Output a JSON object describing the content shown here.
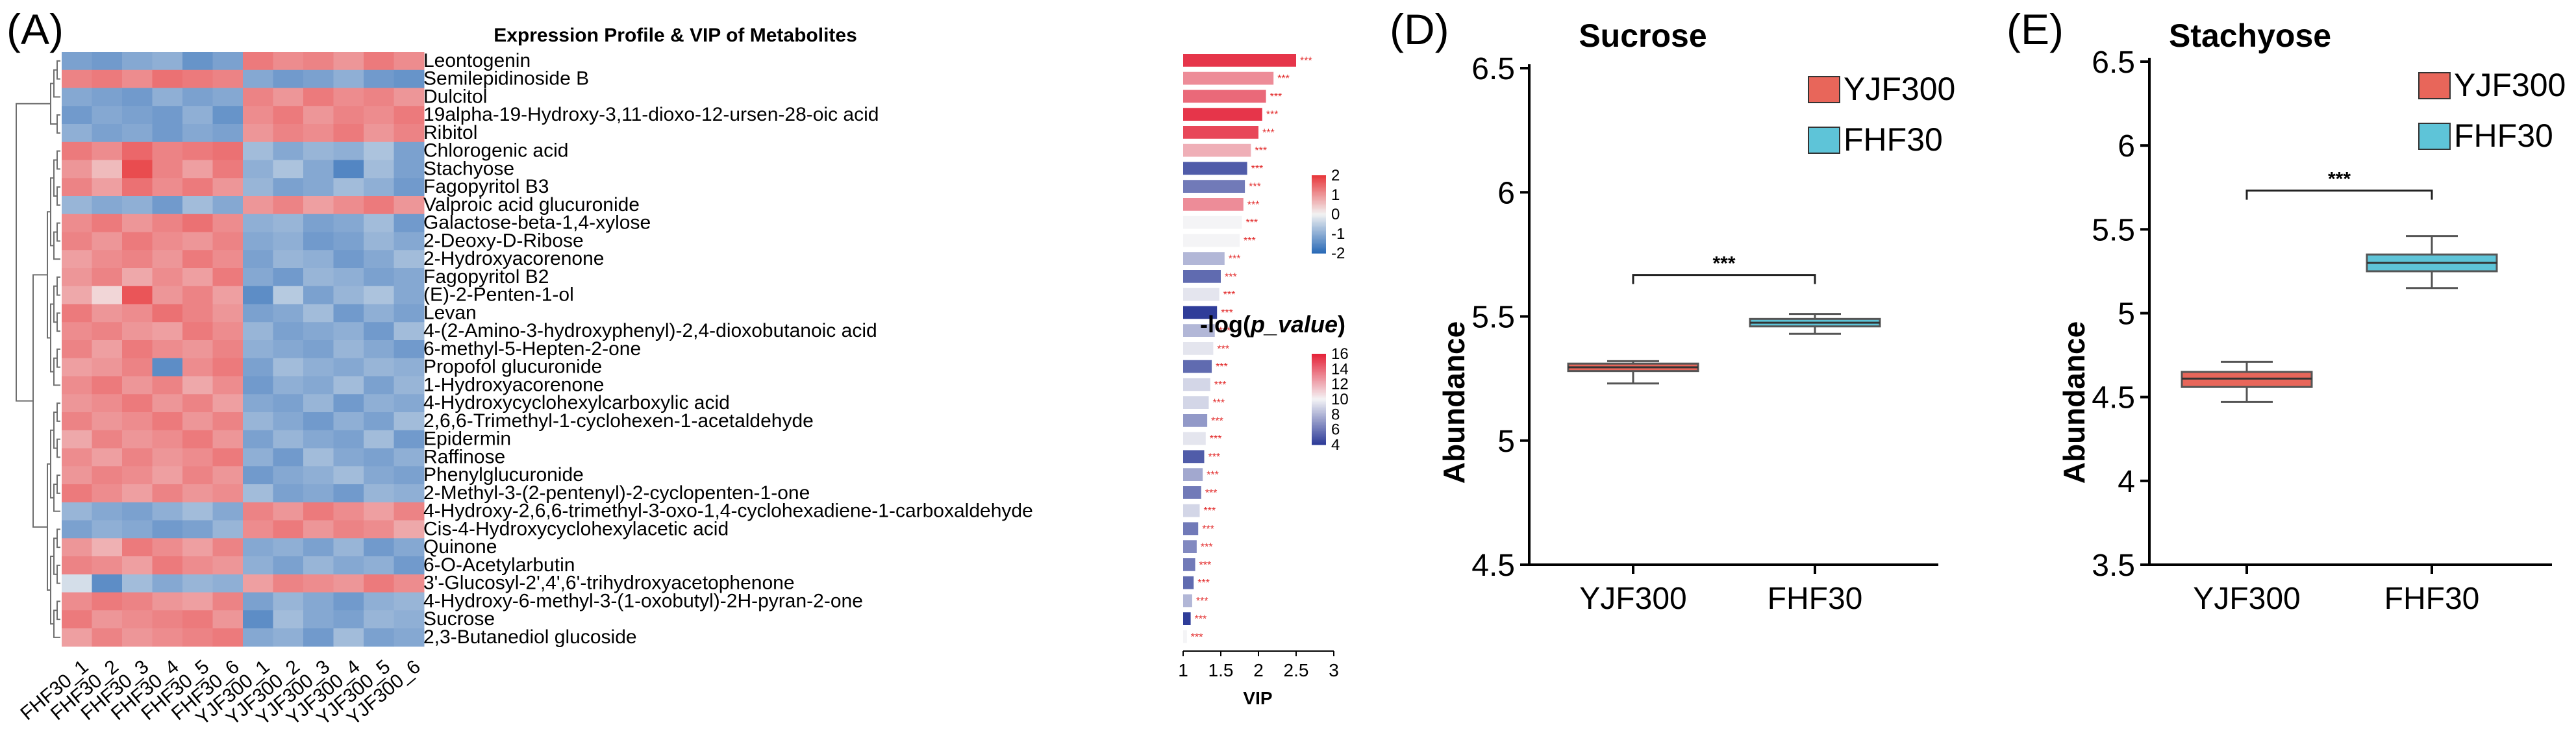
{
  "colors": {
    "heat_low": "#2b6bb7",
    "heat_mid": "#f2f2f2",
    "heat_high": "#e8393d",
    "pval_low": "#2f3d99",
    "pval_mid": "#f4f4f6",
    "pval_high": "#e5243a",
    "stars": "#e22b2b",
    "yjf300": "#e8665a",
    "fhf30": "#5ec4d8",
    "axis": "#000000",
    "dendrogram": "#6e6e6e"
  },
  "chart_data": [
    {
      "type": "heatmap",
      "panel_label": "(A)",
      "title": "Expression Profile & VIP of Metabolites",
      "columns": [
        "FHF30_1",
        "FHF30_2",
        "FHF30_3",
        "FHF30_4",
        "FHF30_5",
        "FHF30_6",
        "YJF300_1",
        "YJF300_2",
        "YJF300_3",
        "YJF300_4",
        "YJF300_5",
        "YJF300_6"
      ],
      "rows": [
        "Leontogenin",
        "Semilepidinoside B",
        "Dulcitol",
        "19alpha-19-Hydroxy-3,11-dioxo-12-ursen-28-oic acid",
        "Ribitol",
        "Chlorogenic acid",
        "Stachyose",
        "Fagopyritol B3",
        "Valproic acid glucuronide",
        "Galactose-beta-1,4-xylose",
        "2-Deoxy-D-Ribose",
        "2-Hydroxyacorenone",
        "Fagopyritol B2",
        "(E)-2-Penten-1-ol",
        "Levan",
        "4-(2-Amino-3-hydroxyphenyl)-2,4-dioxobutanoic acid",
        "6-methyl-5-Hepten-2-one",
        "Propofol glucuronide",
        "1-Hydroxyacorenone",
        "4-Hydroxycyclohexylcarboxylic acid",
        "2,6,6-Trimethyl-1-cyclohexen-1-acetaldehyde",
        "Epidermin",
        "Raffinose",
        "Phenylglucuronide",
        "2-Methyl-3-(2-pentenyl)-2-cyclopenten-1-one",
        "4-Hydroxy-2,6,6-trimethyl-3-oxo-1,4-cyclohexadiene-1-carboxaldehyde",
        "Cis-4-Hydroxycyclohexylacetic acid",
        "Quinone",
        "6-O-Acetylarbutin",
        "3'-Glucosyl-2',4',6'-trihydroxyacetophenone",
        "4-Hydroxy-6-methyl-3-(1-oxobutyl)-2H-pyran-2-one",
        "Sucrose",
        "2,3-Butanediol glucoside"
      ],
      "values": [
        [
          -1.2,
          -1.3,
          -1.1,
          -1.0,
          -1.4,
          -1.2,
          1.3,
          1.1,
          1.2,
          1.0,
          1.3,
          1.1
        ],
        [
          1.2,
          1.3,
          1.1,
          1.4,
          1.3,
          1.2,
          -1.1,
          -1.3,
          -1.2,
          -1.0,
          -1.3,
          -1.4
        ],
        [
          -1.1,
          -1.2,
          -1.3,
          -1.0,
          -1.2,
          -1.1,
          1.2,
          1.0,
          1.3,
          1.1,
          1.2,
          1.0
        ],
        [
          -1.3,
          -1.1,
          -1.2,
          -1.3,
          -1.0,
          -1.4,
          1.1,
          1.3,
          1.0,
          1.2,
          1.1,
          1.3
        ],
        [
          -1.0,
          -1.2,
          -1.1,
          -1.3,
          -1.1,
          -1.2,
          1.0,
          1.2,
          1.1,
          1.3,
          1.0,
          1.2
        ],
        [
          1.3,
          1.1,
          1.5,
          1.2,
          1.3,
          1.4,
          -0.8,
          -1.1,
          -0.9,
          -1.0,
          -0.7,
          -1.2
        ],
        [
          1.0,
          0.6,
          1.8,
          1.2,
          0.9,
          1.3,
          -1.0,
          -0.7,
          -1.1,
          -1.6,
          -0.8,
          -1.2
        ],
        [
          1.2,
          0.9,
          1.4,
          1.1,
          1.3,
          1.0,
          -0.9,
          -1.2,
          -1.1,
          -0.8,
          -1.0,
          -1.3
        ],
        [
          -0.9,
          -1.1,
          -1.0,
          -1.3,
          -0.8,
          -1.1,
          1.0,
          1.2,
          0.9,
          1.1,
          1.3,
          1.0
        ],
        [
          1.1,
          1.3,
          1.0,
          1.2,
          1.4,
          1.1,
          -1.0,
          -0.9,
          -1.2,
          -1.1,
          -0.8,
          -1.3
        ],
        [
          1.2,
          1.0,
          1.3,
          1.1,
          1.0,
          1.2,
          -1.1,
          -1.0,
          -1.3,
          -1.2,
          -0.9,
          -1.1
        ],
        [
          0.9,
          1.1,
          1.2,
          1.0,
          1.3,
          1.1,
          -1.2,
          -0.9,
          -1.0,
          -1.3,
          -1.1,
          -0.8
        ],
        [
          1.0,
          1.2,
          0.8,
          1.1,
          0.9,
          1.3,
          -1.1,
          -1.3,
          -0.9,
          -1.0,
          -1.2,
          -1.1
        ],
        [
          0.8,
          0.3,
          1.7,
          1.0,
          1.2,
          0.9,
          -1.5,
          -0.6,
          -1.2,
          -0.9,
          -0.7,
          -1.1
        ],
        [
          1.3,
          1.0,
          1.1,
          1.4,
          1.2,
          1.0,
          -1.2,
          -1.1,
          -0.8,
          -1.3,
          -1.0,
          -1.2
        ],
        [
          1.1,
          1.2,
          1.0,
          0.9,
          1.3,
          1.1,
          -0.9,
          -1.2,
          -1.1,
          -1.0,
          -1.3,
          -0.8
        ],
        [
          1.2,
          0.9,
          1.3,
          1.1,
          1.0,
          1.2,
          -1.0,
          -1.1,
          -1.2,
          -0.9,
          -1.1,
          -1.3
        ],
        [
          0.9,
          1.0,
          1.2,
          -1.5,
          1.1,
          1.3,
          -1.2,
          -0.8,
          -1.0,
          -1.1,
          -0.9,
          -1.0
        ],
        [
          1.1,
          1.3,
          1.0,
          1.2,
          0.8,
          1.1,
          -1.3,
          -1.0,
          -1.1,
          -0.8,
          -1.2,
          -0.9
        ],
        [
          1.0,
          1.1,
          1.3,
          1.0,
          1.2,
          0.9,
          -1.1,
          -1.2,
          -0.9,
          -1.3,
          -1.0,
          -1.1
        ],
        [
          1.2,
          1.0,
          1.1,
          1.3,
          1.0,
          1.2,
          -0.9,
          -1.1,
          -1.3,
          -1.0,
          -1.2,
          -0.8
        ],
        [
          0.8,
          1.2,
          1.0,
          1.1,
          1.3,
          1.0,
          -1.2,
          -0.9,
          -1.1,
          -1.2,
          -0.8,
          -1.3
        ],
        [
          1.1,
          0.9,
          1.2,
          1.0,
          1.1,
          1.3,
          -1.0,
          -1.3,
          -0.8,
          -1.1,
          -1.2,
          -1.0
        ],
        [
          1.0,
          1.2,
          1.1,
          0.9,
          1.2,
          1.0,
          -1.3,
          -1.1,
          -1.0,
          -0.8,
          -1.1,
          -1.2
        ],
        [
          1.3,
          1.1,
          0.9,
          1.2,
          1.0,
          1.1,
          -0.8,
          -1.2,
          -1.1,
          -1.3,
          -0.9,
          -1.0
        ],
        [
          -0.9,
          -1.1,
          -1.2,
          -1.0,
          -0.8,
          -1.1,
          1.2,
          1.0,
          1.3,
          1.1,
          0.9,
          1.2
        ],
        [
          -1.2,
          -1.0,
          -1.1,
          -1.3,
          -1.2,
          -0.9,
          1.1,
          1.3,
          1.0,
          1.2,
          1.1,
          0.8
        ],
        [
          1.0,
          0.7,
          1.3,
          1.1,
          0.9,
          1.2,
          -1.1,
          -1.0,
          -1.2,
          -0.9,
          -1.3,
          -1.1
        ],
        [
          1.2,
          1.1,
          0.9,
          1.3,
          1.1,
          1.0,
          -1.0,
          -1.2,
          -0.9,
          -1.1,
          -1.0,
          -1.3
        ],
        [
          -0.3,
          -1.5,
          -0.8,
          -1.1,
          -0.9,
          -1.0,
          0.9,
          1.2,
          1.1,
          1.0,
          1.3,
          1.1
        ],
        [
          1.1,
          1.3,
          1.2,
          1.0,
          0.9,
          1.2,
          -1.2,
          -0.9,
          -1.1,
          -1.3,
          -1.0,
          -0.9
        ],
        [
          1.3,
          1.0,
          1.1,
          1.2,
          1.3,
          1.0,
          -1.5,
          -0.8,
          -1.1,
          -1.2,
          -0.9,
          -1.0
        ],
        [
          0.9,
          1.2,
          1.0,
          1.1,
          1.2,
          1.3,
          -1.1,
          -1.0,
          -1.3,
          -0.8,
          -1.2,
          -1.1
        ]
      ],
      "vip": [
        2.5,
        2.2,
        2.1,
        2.05,
        2.0,
        1.9,
        1.85,
        1.82,
        1.8,
        1.78,
        1.75,
        1.55,
        1.5,
        1.48,
        1.45,
        1.42,
        1.4,
        1.38,
        1.36,
        1.34,
        1.32,
        1.3,
        1.28,
        1.26,
        1.24,
        1.22,
        1.2,
        1.18,
        1.16,
        1.14,
        1.12,
        1.1,
        1.05
      ],
      "neg_log_p": [
        15.5,
        13.0,
        14.0,
        15.5,
        15.0,
        12.0,
        5.0,
        6.0,
        13.0,
        10.0,
        10.0,
        8.0,
        5.5,
        9.5,
        4.0,
        8.0,
        9.5,
        5.5,
        9.0,
        9.0,
        7.0,
        9.5,
        5.0,
        7.5,
        6.0,
        9.0,
        6.0,
        6.5,
        6.0,
        5.5,
        8.0,
        4.0,
        10.0
      ],
      "significance": "***",
      "vip_axis": {
        "label": "VIP",
        "ticks": [
          "1",
          "1.5",
          "2",
          "2.5",
          "3"
        ],
        "range": [
          1,
          3
        ]
      },
      "color_legend": {
        "ticks": [
          "2",
          "1",
          "0",
          "-1",
          "-2"
        ],
        "range": [
          -2,
          2
        ]
      },
      "pvalue_legend": {
        "title_prefix": "-log(",
        "title_italic": "p_value",
        "title_suffix": ")",
        "ticks": [
          "16",
          "14",
          "12",
          "10",
          "8",
          "6",
          "4"
        ],
        "range": [
          4,
          16
        ]
      }
    },
    {
      "type": "box",
      "panel_label": "(D)",
      "title": "Sucrose",
      "ylabel": "Abundance",
      "ylim": [
        4.5,
        6.5
      ],
      "yticks": [
        "4.5",
        "5",
        "5.5",
        "6",
        "6.5"
      ],
      "categories": [
        "YJF300",
        "FHF30"
      ],
      "boxes": [
        {
          "name": "YJF300",
          "min": 5.23,
          "q1": 5.28,
          "median": 5.295,
          "q3": 5.31,
          "max": 5.32
        },
        {
          "name": "FHF30",
          "min": 5.43,
          "q1": 5.46,
          "median": 5.475,
          "q3": 5.49,
          "max": 5.51
        }
      ],
      "legend": [
        "YJF300",
        "FHF30"
      ],
      "legend_position": "top-right",
      "significance": "***"
    },
    {
      "type": "box",
      "panel_label": "(E)",
      "title": "Stachyose",
      "ylabel": "Abundance",
      "ylim": [
        3.5,
        6.5
      ],
      "yticks": [
        "3.5",
        "4",
        "4.5",
        "5",
        "5.5",
        "6",
        "6.5"
      ],
      "categories": [
        "YJF300",
        "FHF30"
      ],
      "boxes": [
        {
          "name": "YJF300",
          "min": 4.47,
          "q1": 4.56,
          "median": 4.61,
          "q3": 4.65,
          "max": 4.71
        },
        {
          "name": "FHF30",
          "min": 5.15,
          "q1": 5.25,
          "median": 5.3,
          "q3": 5.35,
          "max": 5.46
        }
      ],
      "legend": [
        "YJF300",
        "FHF30"
      ],
      "legend_position": "top-right",
      "significance": "***"
    }
  ]
}
